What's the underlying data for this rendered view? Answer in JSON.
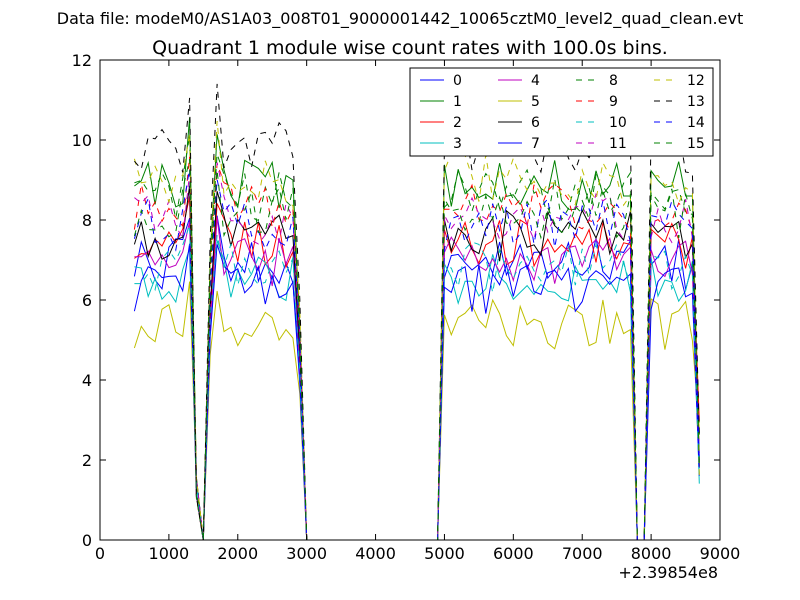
{
  "suptitle": "Data file: modeM0/AS1A03_008T01_9000001442_10065cztM0_level2_quad_clean.evt",
  "chart_data": {
    "type": "line",
    "title": "Quadrant 1 module wise count rates with 100.0s bins.",
    "xlabel": "",
    "ylabel": "",
    "x_offset_label": "+2.39854e8",
    "xlim": [
      0,
      9000
    ],
    "ylim": [
      0,
      12
    ],
    "xticks": [
      0,
      1000,
      2000,
      3000,
      4000,
      5000,
      6000,
      7000,
      8000,
      9000
    ],
    "yticks": [
      0,
      2,
      4,
      6,
      8,
      10,
      12
    ],
    "grid": false,
    "legend_position": "top-right",
    "legend_columns": 4,
    "x": [
      500,
      600,
      700,
      800,
      900,
      1000,
      1100,
      1200,
      1300,
      1400,
      1500,
      1600,
      1700,
      1800,
      1900,
      2000,
      2100,
      2200,
      2300,
      2400,
      2500,
      2600,
      2700,
      2800,
      2900,
      3000,
      3100,
      3200,
      3300,
      3400,
      3500,
      3600,
      3700,
      3800,
      3900,
      4000,
      4100,
      4200,
      4300,
      4400,
      4500,
      4600,
      4700,
      4800,
      4900,
      5000,
      5100,
      5200,
      5300,
      5400,
      5500,
      5600,
      5700,
      5800,
      5900,
      6000,
      6100,
      6200,
      6300,
      6400,
      6500,
      6600,
      6700,
      6800,
      6900,
      7000,
      7100,
      7200,
      7300,
      7400,
      7500,
      7600,
      7700,
      7800,
      7900,
      8000,
      8100,
      8200,
      8300,
      8400,
      8500,
      8600,
      8700
    ],
    "series": [
      {
        "name": "0",
        "color": "#0000ff",
        "dash": "solid",
        "base": 6.9
      },
      {
        "name": "1",
        "color": "#008000",
        "dash": "solid",
        "base": 8.9
      },
      {
        "name": "2",
        "color": "#ff0000",
        "dash": "solid",
        "base": 7.4
      },
      {
        "name": "3",
        "color": "#00bfbf",
        "dash": "solid",
        "base": 6.5
      },
      {
        "name": "4",
        "color": "#bf00bf",
        "dash": "solid",
        "base": 7.0
      },
      {
        "name": "5",
        "color": "#bfbf00",
        "dash": "solid",
        "base": 5.4
      },
      {
        "name": "6",
        "color": "#000000",
        "dash": "solid",
        "base": 7.6
      },
      {
        "name": "7",
        "color": "#0000ff",
        "dash": "solid",
        "base": 6.3
      },
      {
        "name": "8",
        "color": "#008000",
        "dash": "dashed",
        "base": 8.6
      },
      {
        "name": "9",
        "color": "#ff0000",
        "dash": "dashed",
        "base": 8.3
      },
      {
        "name": "10",
        "color": "#00bfbf",
        "dash": "dashed",
        "base": 6.8
      },
      {
        "name": "11",
        "color": "#bf00bf",
        "dash": "dashed",
        "base": 8.0
      },
      {
        "name": "12",
        "color": "#bfbf00",
        "dash": "dashed",
        "base": 9.0
      },
      {
        "name": "13",
        "color": "#000000",
        "dash": "dashed",
        "base": 9.8
      },
      {
        "name": "14",
        "color": "#0000ff",
        "dash": "dashed",
        "base": 7.9
      },
      {
        "name": "15",
        "color": "#008000",
        "dash": "dashed",
        "base": 8.2
      }
    ]
  }
}
